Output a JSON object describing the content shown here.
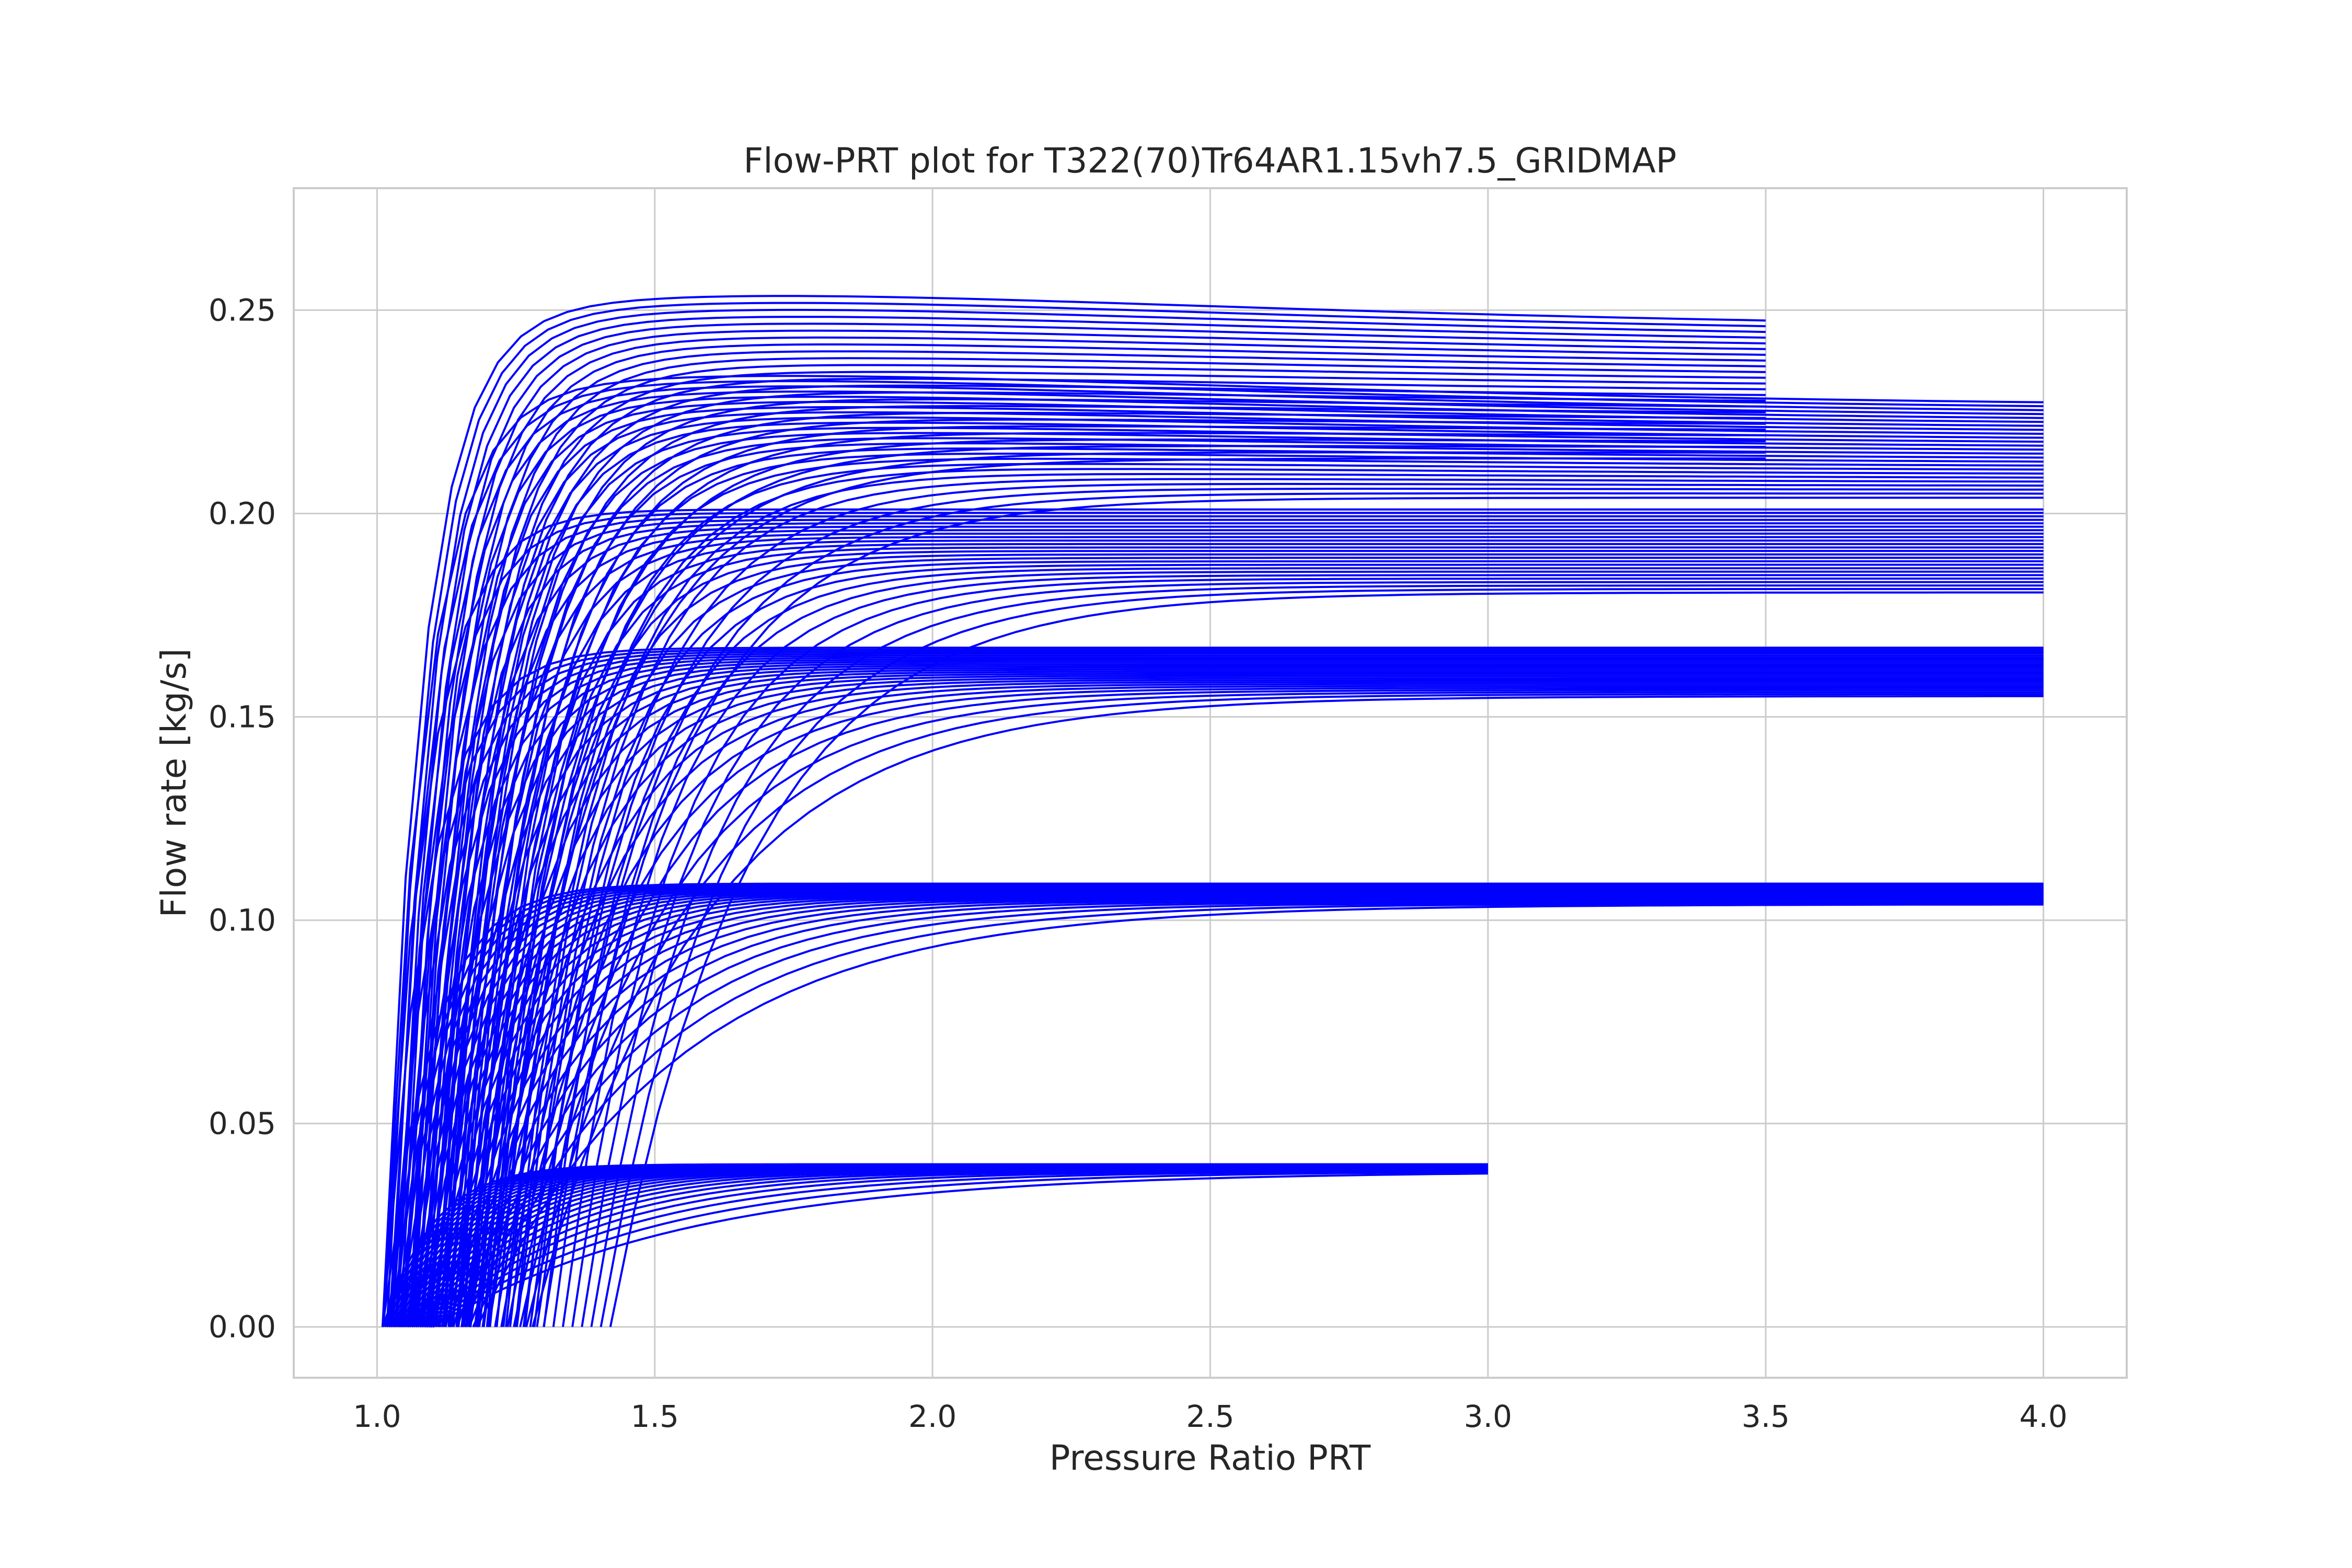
{
  "chart_data": {
    "type": "line",
    "title": "Flow-PRT plot for T322(70)Tr64AR1.15vh7.5_GRIDMAP",
    "xlabel": "Pressure Ratio PRT",
    "ylabel": "Flow rate [kg/s]",
    "xlim": [
      0.85,
      4.15
    ],
    "ylim": [
      -0.0125,
      0.28
    ],
    "xticks": [
      1.0,
      1.5,
      2.0,
      2.5,
      3.0,
      3.5,
      4.0
    ],
    "xtick_labels": [
      "1.0",
      "1.5",
      "2.0",
      "2.5",
      "3.0",
      "3.5",
      "4.0"
    ],
    "yticks": [
      0.0,
      0.05,
      0.1,
      0.15,
      0.2,
      0.25
    ],
    "ytick_labels": [
      "0.00",
      "0.05",
      "0.10",
      "0.15",
      "0.20",
      "0.25"
    ],
    "grid": true,
    "legend": "none",
    "line_color": "#0000ff",
    "series_groups": [
      {
        "x_start_range": [
          1.01,
          1.1
        ],
        "x_end": 3.0,
        "plateau_range": [
          0.038,
          0.04
        ],
        "count": 25
      },
      {
        "x_start_range": [
          1.01,
          1.18
        ],
        "x_end": 4.0,
        "plateau_range": [
          0.103,
          0.109
        ],
        "count": 25
      },
      {
        "x_start_range": [
          1.01,
          1.28
        ],
        "x_end": 4.0,
        "plateau_range": [
          0.153,
          0.167
        ],
        "count": 25
      },
      {
        "x_start_range": [
          1.01,
          1.42
        ],
        "x_end": 4.0,
        "plateau_range": [
          0.177,
          0.201
        ],
        "count": 25
      },
      {
        "x_start_range": [
          1.01,
          1.3
        ],
        "x_end": 4.0,
        "plateau_range": [
          0.2,
          0.226
        ],
        "count": 25
      },
      {
        "x_start_range": [
          1.01,
          1.2
        ],
        "x_end": 3.5,
        "plateau_range": [
          0.208,
          0.245
        ],
        "count": 25
      }
    ]
  }
}
